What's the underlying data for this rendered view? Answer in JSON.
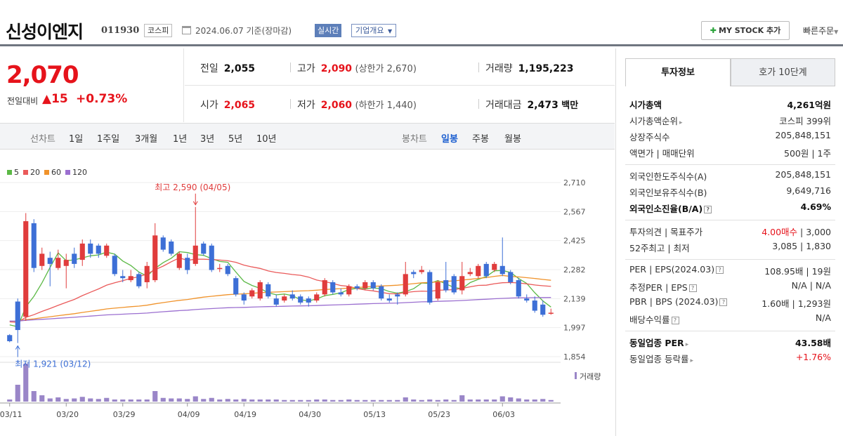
{
  "header": {
    "name": "신성이엔지",
    "code": "011930",
    "market": "코스피",
    "date": "2024.06.07 기준(장마감)",
    "realtime": "실시간",
    "corp_info": "기업개요",
    "mystock": "MY STOCK 추가",
    "quick_order": "빠른주문"
  },
  "summary": {
    "price": "2,070",
    "diff_label": "전일대비",
    "diff": "▲15",
    "rate": "+0.73%",
    "prev_label": "전일",
    "prev": "2,055",
    "high_label": "고가",
    "high": "2,090",
    "upper": "(상한가 2,670)",
    "volume_label": "거래량",
    "volume": "1,195,223",
    "open_label": "시가",
    "open": "2,065",
    "low_label": "저가",
    "low": "2,060",
    "lower": "(하한가 1,440)",
    "amount_label": "거래대금",
    "amount": "2,473",
    "amount_unit": "백만"
  },
  "period": {
    "line_label": "선차트",
    "line_items": [
      "1일",
      "1주일",
      "3개월",
      "1년",
      "3년",
      "5년",
      "10년"
    ],
    "candle_label": "봉차트",
    "candle_items": [
      "일봉",
      "주봉",
      "월봉"
    ],
    "candle_selected": "일봉"
  },
  "legend": [
    {
      "name": "5",
      "color": "#5cb946"
    },
    {
      "name": "20",
      "color": "#ea5a5a"
    },
    {
      "name": "60",
      "color": "#f0932b"
    },
    {
      "name": "120",
      "color": "#9b6fd0"
    }
  ],
  "chart_data": {
    "type": "candlestick",
    "y_ticks": [
      "2,710",
      "2,567",
      "2,425",
      "2,282",
      "2,139",
      "1,997",
      "1,854"
    ],
    "x_ticks": [
      "03/11",
      "03/20",
      "03/29",
      "04/09",
      "04/19",
      "04/30",
      "05/13",
      "05/23",
      "06/03"
    ],
    "ylim": [
      1854,
      2710
    ],
    "high_annotation": "최고 2,590 (04/05)",
    "low_annotation": "최저 1,921 (03/12)",
    "volume_label": "거래량",
    "colors": {
      "up": "#e03c3c",
      "down": "#3d6fd6",
      "volume": "#9a86c8"
    },
    "candles": [
      {
        "o": 1960,
        "c": 1930,
        "h": 1965,
        "l": 1925,
        "v": 40
      },
      {
        "o": 2125,
        "c": 1985,
        "h": 2140,
        "l": 1921,
        "v": 320
      },
      {
        "o": 2050,
        "c": 2520,
        "h": 2560,
        "l": 2030,
        "v": 720
      },
      {
        "o": 2510,
        "c": 2290,
        "h": 2530,
        "l": 2270,
        "v": 200
      },
      {
        "o": 2300,
        "c": 2360,
        "h": 2390,
        "l": 2280,
        "v": 120
      },
      {
        "o": 2340,
        "c": 2310,
        "h": 2370,
        "l": 2200,
        "v": 60
      },
      {
        "o": 2290,
        "c": 2340,
        "h": 2380,
        "l": 2280,
        "v": 80
      },
      {
        "o": 2300,
        "c": 2330,
        "h": 2360,
        "l": 2190,
        "v": 50
      },
      {
        "o": 2360,
        "c": 2310,
        "h": 2390,
        "l": 2290,
        "v": 60
      },
      {
        "o": 2330,
        "c": 2410,
        "h": 2430,
        "l": 2300,
        "v": 90
      },
      {
        "o": 2410,
        "c": 2360,
        "h": 2430,
        "l": 2340,
        "v": 60
      },
      {
        "o": 2400,
        "c": 2360,
        "h": 2410,
        "l": 2340,
        "v": 50
      },
      {
        "o": 2350,
        "c": 2400,
        "h": 2410,
        "l": 2340,
        "v": 70
      },
      {
        "o": 2350,
        "c": 2260,
        "h": 2360,
        "l": 2250,
        "v": 40
      },
      {
        "o": 2250,
        "c": 2240,
        "h": 2280,
        "l": 2220,
        "v": 40
      },
      {
        "o": 2230,
        "c": 2250,
        "h": 2280,
        "l": 2220,
        "v": 40
      },
      {
        "o": 2260,
        "c": 2200,
        "h": 2270,
        "l": 2190,
        "v": 40
      },
      {
        "o": 2220,
        "c": 2300,
        "h": 2320,
        "l": 2190,
        "v": 40
      },
      {
        "o": 2230,
        "c": 2450,
        "h": 2510,
        "l": 2220,
        "v": 200
      },
      {
        "o": 2440,
        "c": 2380,
        "h": 2450,
        "l": 2370,
        "v": 70
      },
      {
        "o": 2420,
        "c": 2360,
        "h": 2430,
        "l": 2350,
        "v": 60
      },
      {
        "o": 2290,
        "c": 2360,
        "h": 2370,
        "l": 2280,
        "v": 60
      },
      {
        "o": 2340,
        "c": 2280,
        "h": 2360,
        "l": 2260,
        "v": 50
      },
      {
        "o": 2310,
        "c": 2400,
        "h": 2590,
        "l": 2300,
        "v": 100
      },
      {
        "o": 2410,
        "c": 2360,
        "h": 2420,
        "l": 2350,
        "v": 50
      },
      {
        "o": 2400,
        "c": 2280,
        "h": 2410,
        "l": 2270,
        "v": 70
      },
      {
        "o": 2290,
        "c": 2290,
        "h": 2310,
        "l": 2270,
        "v": 40
      },
      {
        "o": 2300,
        "c": 2260,
        "h": 2310,
        "l": 2250,
        "v": 50
      },
      {
        "o": 2240,
        "c": 2160,
        "h": 2250,
        "l": 2150,
        "v": 40
      },
      {
        "o": 2160,
        "c": 2130,
        "h": 2170,
        "l": 2110,
        "v": 50
      },
      {
        "o": 2150,
        "c": 2180,
        "h": 2190,
        "l": 2140,
        "v": 40
      },
      {
        "o": 2140,
        "c": 2220,
        "h": 2230,
        "l": 2130,
        "v": 40
      },
      {
        "o": 2210,
        "c": 2150,
        "h": 2220,
        "l": 2140,
        "v": 40
      },
      {
        "o": 2140,
        "c": 2110,
        "h": 2160,
        "l": 2100,
        "v": 40
      },
      {
        "o": 2130,
        "c": 2150,
        "h": 2160,
        "l": 2120,
        "v": 30
      },
      {
        "o": 2160,
        "c": 2140,
        "h": 2180,
        "l": 2130,
        "v": 30
      },
      {
        "o": 2150,
        "c": 2120,
        "h": 2160,
        "l": 2110,
        "v": 30
      },
      {
        "o": 2140,
        "c": 2120,
        "h": 2150,
        "l": 2100,
        "v": 30
      },
      {
        "o": 2130,
        "c": 2160,
        "h": 2170,
        "l": 2120,
        "v": 40
      },
      {
        "o": 2160,
        "c": 2230,
        "h": 2240,
        "l": 2150,
        "v": 40
      },
      {
        "o": 2220,
        "c": 2170,
        "h": 2230,
        "l": 2160,
        "v": 30
      },
      {
        "o": 2170,
        "c": 2160,
        "h": 2190,
        "l": 2150,
        "v": 30
      },
      {
        "o": 2160,
        "c": 2200,
        "h": 2210,
        "l": 2150,
        "v": 40
      },
      {
        "o": 2200,
        "c": 2190,
        "h": 2210,
        "l": 2180,
        "v": 30
      },
      {
        "o": 2190,
        "c": 2220,
        "h": 2230,
        "l": 2180,
        "v": 30
      },
      {
        "o": 2220,
        "c": 2190,
        "h": 2230,
        "l": 2180,
        "v": 30
      },
      {
        "o": 2200,
        "c": 2140,
        "h": 2210,
        "l": 2130,
        "v": 30
      },
      {
        "o": 2140,
        "c": 2130,
        "h": 2160,
        "l": 2120,
        "v": 30
      },
      {
        "o": 2160,
        "c": 2150,
        "h": 2170,
        "l": 2110,
        "v": 30
      },
      {
        "o": 2160,
        "c": 2260,
        "h": 2320,
        "l": 2150,
        "v": 80
      },
      {
        "o": 2270,
        "c": 2260,
        "h": 2280,
        "l": 2240,
        "v": 40
      },
      {
        "o": 2270,
        "c": 2280,
        "h": 2300,
        "l": 2260,
        "v": 30
      },
      {
        "o": 2270,
        "c": 2120,
        "h": 2280,
        "l": 2110,
        "v": 40
      },
      {
        "o": 2140,
        "c": 2220,
        "h": 2230,
        "l": 2130,
        "v": 30
      },
      {
        "o": 2230,
        "c": 2180,
        "h": 2320,
        "l": 2170,
        "v": 40
      },
      {
        "o": 2250,
        "c": 2170,
        "h": 2260,
        "l": 2160,
        "v": 30
      },
      {
        "o": 2180,
        "c": 2250,
        "h": 2320,
        "l": 2160,
        "v": 120
      },
      {
        "o": 2260,
        "c": 2270,
        "h": 2290,
        "l": 2250,
        "v": 40
      },
      {
        "o": 2250,
        "c": 2300,
        "h": 2310,
        "l": 2240,
        "v": 40
      },
      {
        "o": 2310,
        "c": 2250,
        "h": 2320,
        "l": 2240,
        "v": 40
      },
      {
        "o": 2280,
        "c": 2310,
        "h": 2320,
        "l": 2270,
        "v": 40
      },
      {
        "o": 2300,
        "c": 2260,
        "h": 2440,
        "l": 2250,
        "v": 100
      },
      {
        "o": 2270,
        "c": 2220,
        "h": 2280,
        "l": 2210,
        "v": 80
      },
      {
        "o": 2230,
        "c": 2150,
        "h": 2240,
        "l": 2140,
        "v": 60
      },
      {
        "o": 2140,
        "c": 2130,
        "h": 2160,
        "l": 2120,
        "v": 40
      },
      {
        "o": 2130,
        "c": 2080,
        "h": 2150,
        "l": 2070,
        "v": 40
      },
      {
        "o": 2110,
        "c": 2060,
        "h": 2130,
        "l": 2050,
        "v": 50
      },
      {
        "o": 2065,
        "c": 2070,
        "h": 2090,
        "l": 2060,
        "v": 30
      }
    ]
  },
  "tabs": [
    "투자정보",
    "호가 10단계"
  ],
  "info": {
    "block1": [
      {
        "k": "시가총액",
        "v": "4,261억원",
        "bold": true
      },
      {
        "k": "시가총액순위",
        "v": "코스피 399위",
        "arrow": true
      },
      {
        "k": "상장주식수",
        "v": "205,848,151"
      },
      {
        "k": "액면가 | 매매단위",
        "v": "500원 | 1주"
      }
    ],
    "block2": [
      {
        "k": "외국인한도주식수(A)",
        "v": "205,848,151"
      },
      {
        "k": "외국인보유주식수(B)",
        "v": "9,649,716"
      },
      {
        "k": "외국인소진율(B/A)",
        "v": "4.69%",
        "bold": true,
        "q": true
      }
    ],
    "block3": [
      {
        "k": "투자의견 | 목표주가",
        "v_red": "4.00매수",
        "v": " | 3,000"
      },
      {
        "k": "52주최고 | 최저",
        "v": "3,085 | 1,830"
      }
    ],
    "block4": [
      {
        "k": "PER | EPS(2024.03)",
        "v": "108.95배 | 19원",
        "q": true
      },
      {
        "k": "추정PER | EPS",
        "v": "N/A | N/A",
        "q": true
      },
      {
        "k": "PBR | BPS (2024.03)",
        "v": "1.60배 | 1,293원",
        "q": true
      },
      {
        "k": "배당수익률",
        "v": "N/A",
        "q": true
      }
    ],
    "block5": [
      {
        "k": "동일업종 PER",
        "v": "43.58배",
        "bold": true,
        "arrow": true
      },
      {
        "k": "동일업종 등락률",
        "v": "+1.76%",
        "red": true,
        "arrow": true
      }
    ]
  }
}
